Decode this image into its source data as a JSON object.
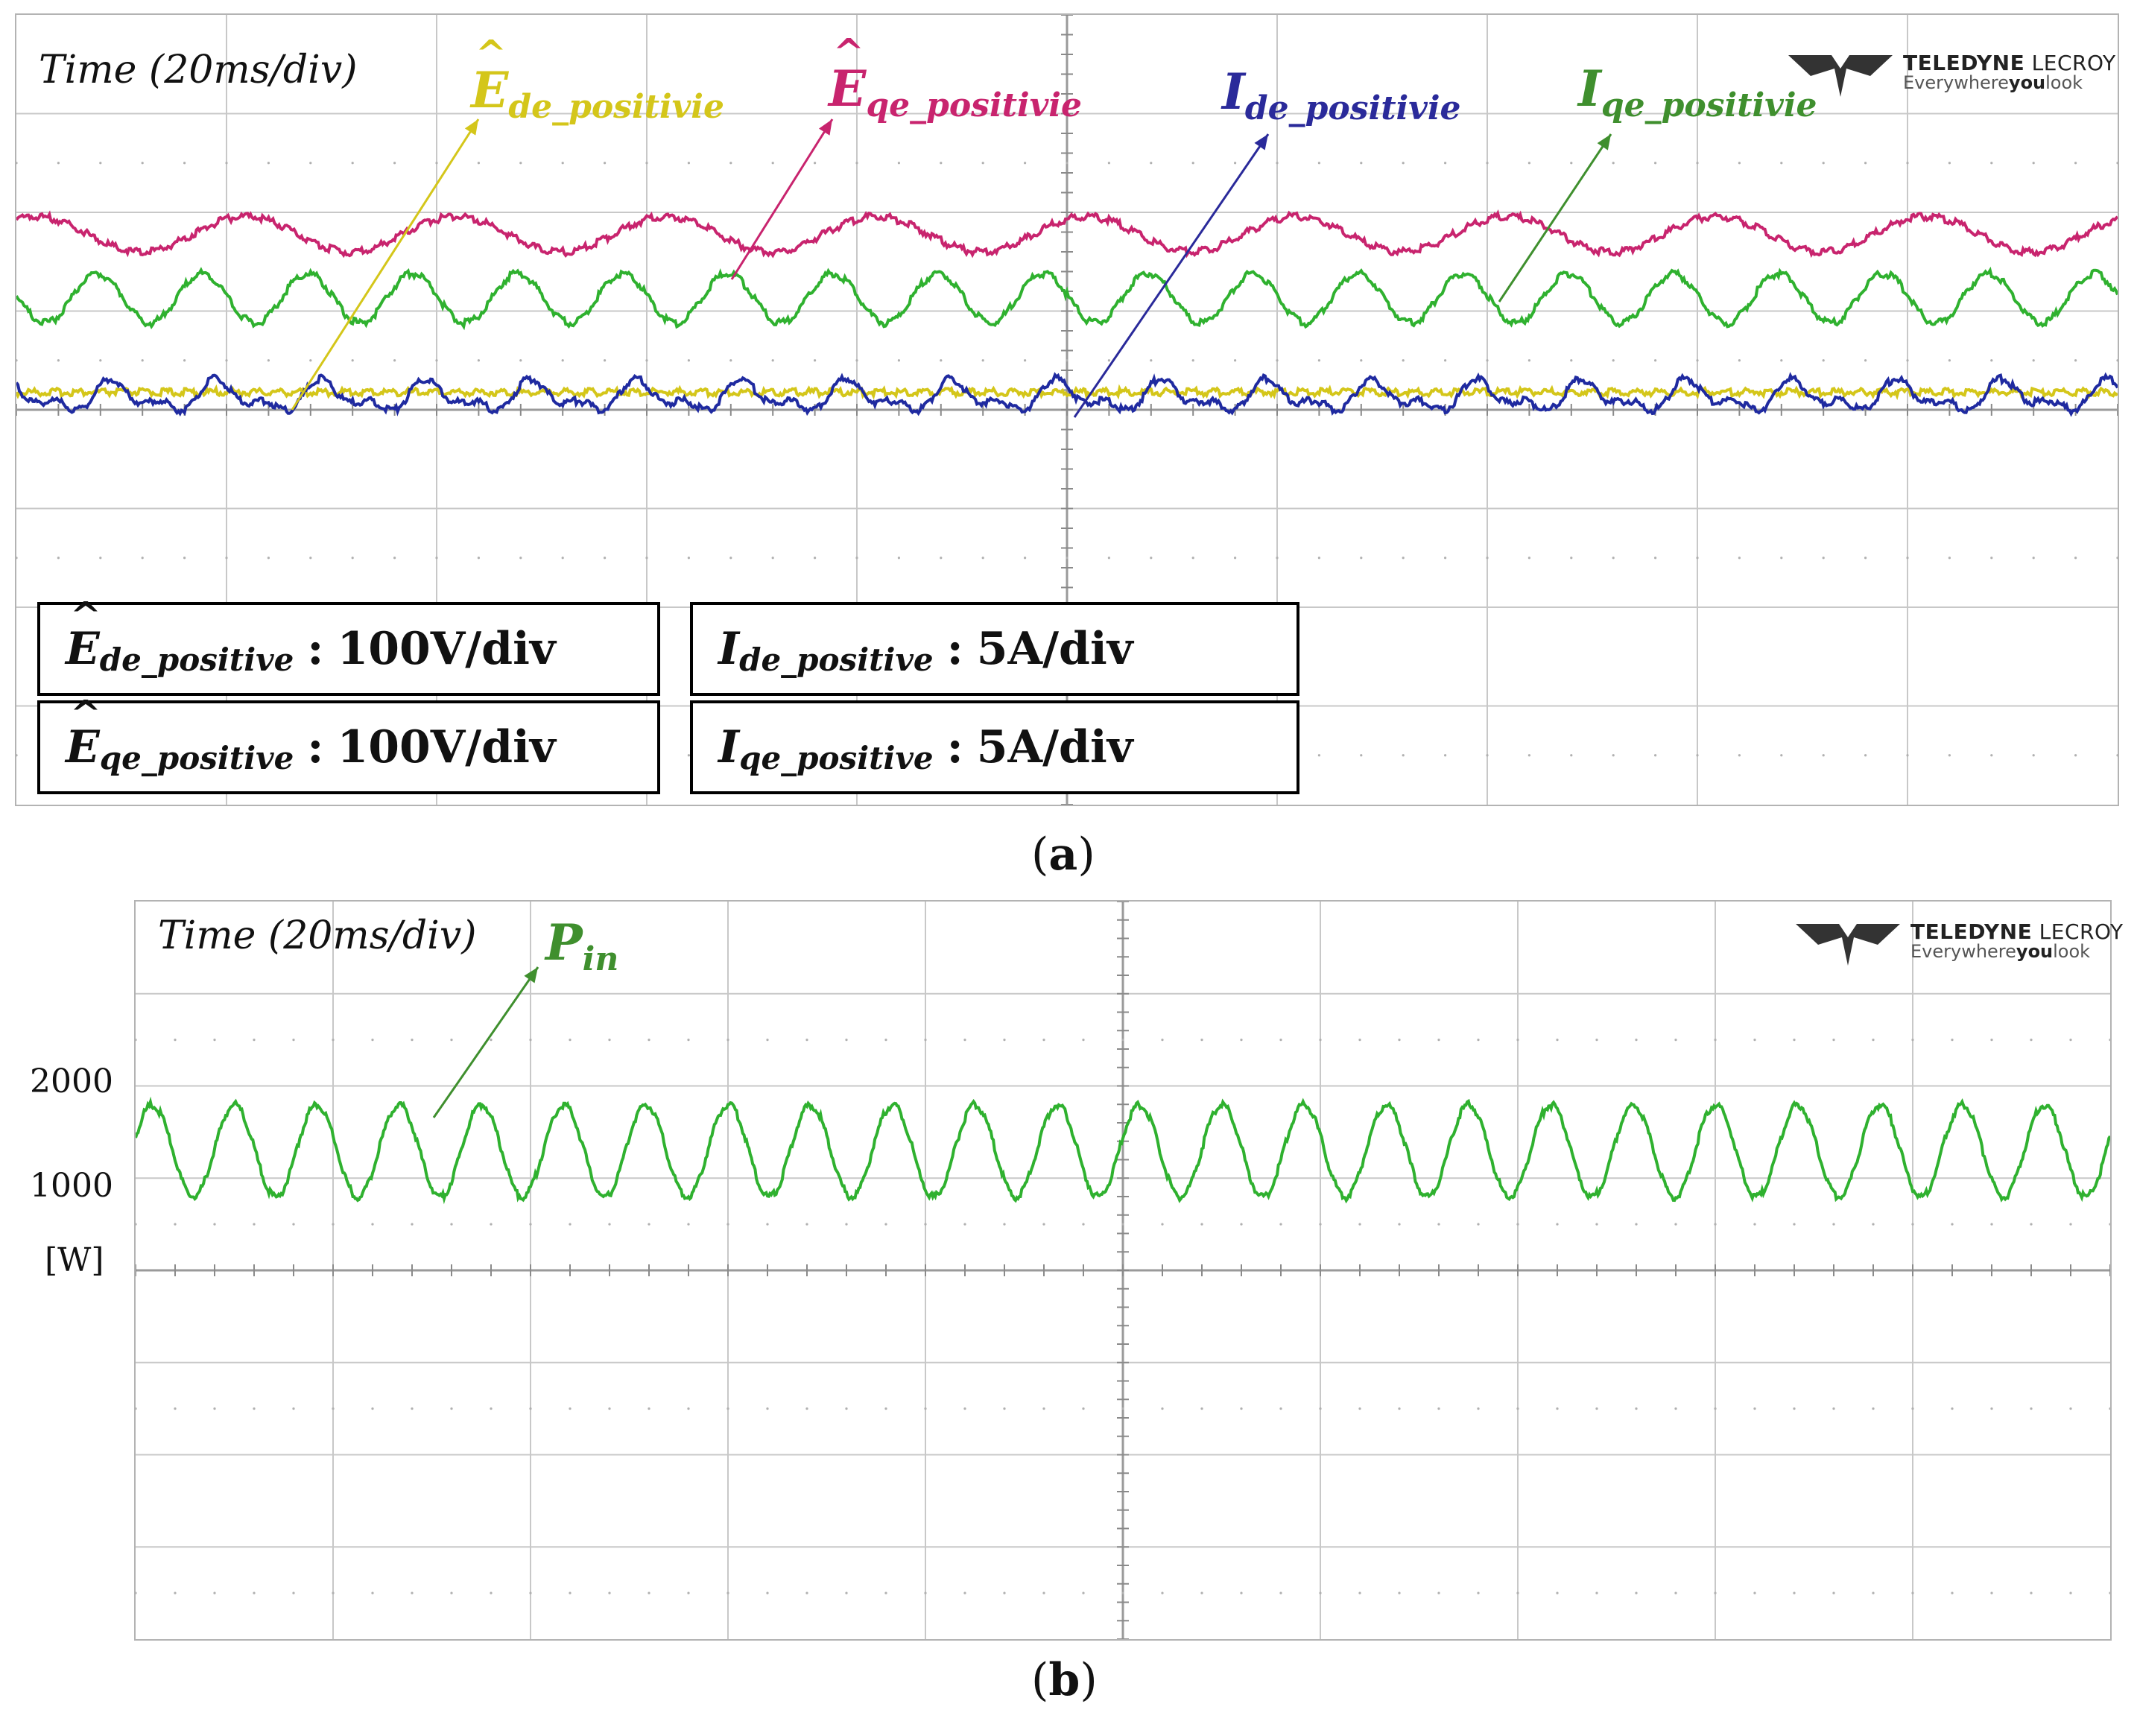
{
  "panel_a": {
    "time_label": "Time (20ms/div)",
    "caption_letter": "a",
    "logo": {
      "brand_bold": "TELEDYNE",
      "brand_thin": " LECROY",
      "tag_pre": "Everywhere",
      "tag_bold": "you",
      "tag_post": "look"
    },
    "trace_labels": [
      {
        "symbol": "E",
        "sub": "de_positivie",
        "hat": true,
        "color": "#d4c61a"
      },
      {
        "symbol": "E",
        "sub": "qe_positivie",
        "hat": true,
        "color": "#c8246e"
      },
      {
        "symbol": "I",
        "sub": "de_positivie",
        "hat": false,
        "color": "#2a2a9a"
      },
      {
        "symbol": "I",
        "sub": "qe_positivie",
        "hat": false,
        "color": "#3f8f2e"
      }
    ],
    "scales": [
      {
        "symbol": "E",
        "sub": "de_positive",
        "hat": true,
        "value": "100V/div"
      },
      {
        "symbol": "I",
        "sub": "de_positive",
        "hat": false,
        "value": "5A/div"
      },
      {
        "symbol": "E",
        "sub": "qe_positive",
        "hat": true,
        "value": "100V/div"
      },
      {
        "symbol": "I",
        "sub": "qe_positive",
        "hat": false,
        "value": "5A/div"
      }
    ],
    "colon": ":"
  },
  "panel_b": {
    "time_label": "Time (20ms/div)",
    "caption_letter": "b",
    "logo": {
      "brand_bold": "TELEDYNE",
      "brand_thin": " LECROY",
      "tag_pre": "Everywhere",
      "tag_bold": "you",
      "tag_post": "look"
    },
    "trace_label": {
      "symbol": "P",
      "sub": "in",
      "color": "#3f8f2e"
    },
    "y_ticks": [
      "2000",
      "1000"
    ],
    "y_unit": "[W]"
  },
  "chart_data": [
    {
      "type": "line",
      "title": "",
      "xlabel": "Time (20ms/div)",
      "x_divisions": 10,
      "y_divisions": 8,
      "grid": true,
      "series": [
        {
          "name": "Ê_de_positivie",
          "scale": "100V/div",
          "color": "#d4c61a",
          "level_div": -0.0,
          "ripple_amplitude_div": 0.03,
          "cycles": 0
        },
        {
          "name": "Ê_qe_positivie",
          "scale": "100V/div",
          "color": "#c8246e",
          "level_div": 1.6,
          "ripple_amplitude_div": 0.18,
          "cycles": 10
        },
        {
          "name": "I_de_positivie",
          "scale": "5A/div",
          "color": "#1f2aa0",
          "level_div": -0.05,
          "ripple_amplitude_div": 0.12,
          "cycles": 20
        },
        {
          "name": "I_qe_positivie",
          "scale": "5A/div",
          "color": "#2fb12f",
          "level_div": 0.95,
          "ripple_amplitude_div": 0.25,
          "cycles": 20
        }
      ]
    },
    {
      "type": "line",
      "title": "",
      "xlabel": "Time (20ms/div)",
      "ylabel": "[W]",
      "x_divisions": 10,
      "y_divisions": 8,
      "grid": true,
      "y_ticks": [
        2000,
        1000
      ],
      "series": [
        {
          "name": "P_in",
          "color": "#2fb12f",
          "mean": 1300,
          "min": 880,
          "max": 1750,
          "cycles": 24
        }
      ]
    }
  ]
}
